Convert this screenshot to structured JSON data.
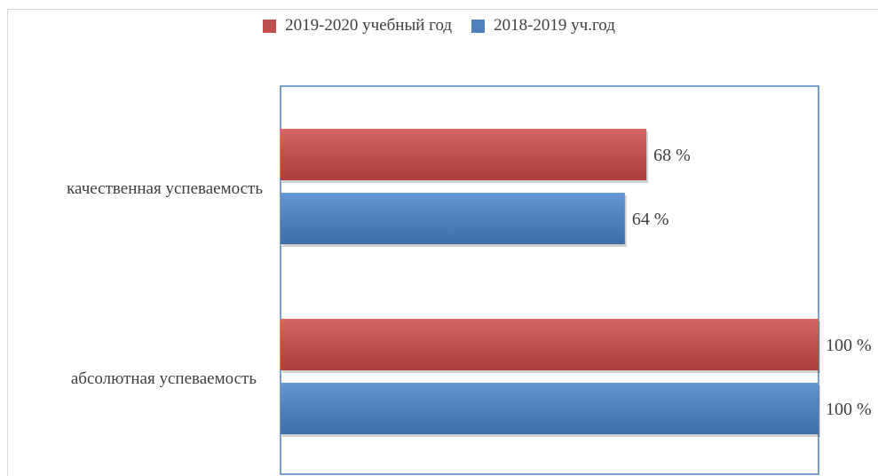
{
  "chart_data": {
    "type": "bar",
    "orientation": "horizontal",
    "categories": [
      "качественная успеваемость",
      "абсолютная успеваемость"
    ],
    "series": [
      {
        "name": "2019-2020 учебный год",
        "values": [
          68,
          100
        ],
        "color": "#c0504d",
        "labels": [
          "68 %",
          "100 %"
        ]
      },
      {
        "name": "2018-2019 уч.год",
        "values": [
          64,
          100
        ],
        "color": "#4f81bd",
        "labels": [
          "64 %",
          "100 %"
        ]
      }
    ],
    "xlim": [
      0,
      100
    ],
    "legend_position": "top",
    "grid": false,
    "plot_border_color": "#4f81bd"
  }
}
